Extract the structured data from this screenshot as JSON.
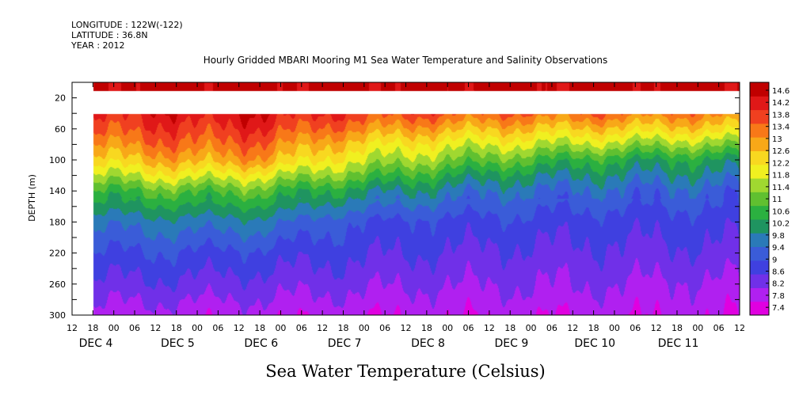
{
  "header": {
    "longitude": "LONGITUDE : 122W(-122)",
    "latitude": "LATITUDE : 36.8N",
    "year": "YEAR : 2012"
  },
  "chart_data": {
    "type": "heatmap",
    "title": "Hourly Gridded MBARI Mooring M1 Sea Water Temperature and Salinity Observations",
    "xlabel": "Sea Water Temperature (Celsius)",
    "ylabel": "DEPTH (m)",
    "ylim": [
      300,
      0
    ],
    "y_reversed": true,
    "y_ticks": [
      20,
      60,
      100,
      140,
      180,
      220,
      260,
      300
    ],
    "x_hour_ticks": [
      "12",
      "18",
      "00",
      "06",
      "12",
      "18",
      "00",
      "06",
      "12",
      "18",
      "00",
      "06",
      "12",
      "18",
      "00",
      "06",
      "12",
      "18",
      "00",
      "06",
      "12",
      "18",
      "00",
      "06",
      "12",
      "18",
      "00",
      "06",
      "12",
      "18",
      "00",
      "06",
      "12"
    ],
    "x_date_labels": [
      "DEC 4",
      "DEC 5",
      "DEC 6",
      "DEC 7",
      "DEC 8",
      "DEC 9",
      "DEC 10",
      "DEC 11"
    ],
    "x_range": [
      "2012-12-03T12:00",
      "2012-12-11T12:00"
    ],
    "data_start": "2012-12-03T18:00",
    "depth_levels_m": [
      10,
      40,
      60,
      80,
      100,
      120,
      140,
      180,
      220,
      260,
      300
    ],
    "depth_missing_m": [
      20,
      35
    ],
    "colorbar": {
      "levels": [
        7.4,
        7.8,
        8.2,
        8.6,
        9,
        9.4,
        9.8,
        10.2,
        10.6,
        11,
        11.4,
        11.8,
        12.2,
        12.6,
        13,
        13.4,
        13.8,
        14.2,
        14.6
      ],
      "labels": [
        "14.6",
        "14.2",
        "13.8",
        "13.4",
        "13",
        "12.6",
        "12.2",
        "11.8",
        "11.4",
        "11",
        "10.6",
        "10.2",
        "9.8",
        "9.4",
        "9",
        "8.6",
        "8.2",
        "7.8",
        "7.4"
      ]
    },
    "series": [
      {
        "date": "DEC 4",
        "temperature_c": [
          14.6,
          14.0,
          13.6,
          13.0,
          12.4,
          11.6,
          10.8,
          9.7,
          9.1,
          8.6,
          8.1
        ]
      },
      {
        "date": "DEC 5",
        "temperature_c": [
          14.6,
          14.2,
          13.8,
          13.4,
          12.8,
          12.0,
          11.0,
          9.8,
          9.1,
          8.6,
          8.0
        ]
      },
      {
        "date": "DEC 6",
        "temperature_c": [
          14.6,
          14.3,
          13.9,
          13.4,
          12.9,
          11.9,
          11.0,
          9.8,
          9.0,
          8.5,
          8.0
        ]
      },
      {
        "date": "DEC 7",
        "temperature_c": [
          14.6,
          13.8,
          13.2,
          12.5,
          11.9,
          11.2,
          10.3,
          9.2,
          8.8,
          8.4,
          7.9
        ]
      },
      {
        "date": "DEC 8",
        "temperature_c": [
          14.6,
          13.6,
          12.8,
          12.0,
          11.4,
          10.6,
          9.9,
          9.0,
          8.7,
          8.3,
          7.9
        ]
      },
      {
        "date": "DEC 9",
        "temperature_c": [
          14.6,
          13.4,
          12.6,
          11.8,
          11.0,
          10.2,
          9.6,
          9.0,
          8.6,
          8.3,
          7.9
        ]
      },
      {
        "date": "DEC 10",
        "temperature_c": [
          14.6,
          13.4,
          12.5,
          11.6,
          10.6,
          10.0,
          9.5,
          8.9,
          8.6,
          8.3,
          7.9
        ]
      },
      {
        "date": "DEC 11",
        "temperature_c": [
          14.6,
          13.2,
          12.4,
          11.4,
          10.4,
          9.9,
          9.4,
          8.9,
          8.6,
          8.2,
          7.9
        ]
      }
    ]
  },
  "colors": {
    "stops": [
      "#e000e0",
      "#b020f0",
      "#7030e8",
      "#3f40e0",
      "#3a5cd8",
      "#2a7ab8",
      "#1f9460",
      "#2bb040",
      "#60c030",
      "#a0d830",
      "#f0f020",
      "#f8d820",
      "#f8a818",
      "#f87818",
      "#f04020",
      "#e01818",
      "#c00000"
    ]
  }
}
